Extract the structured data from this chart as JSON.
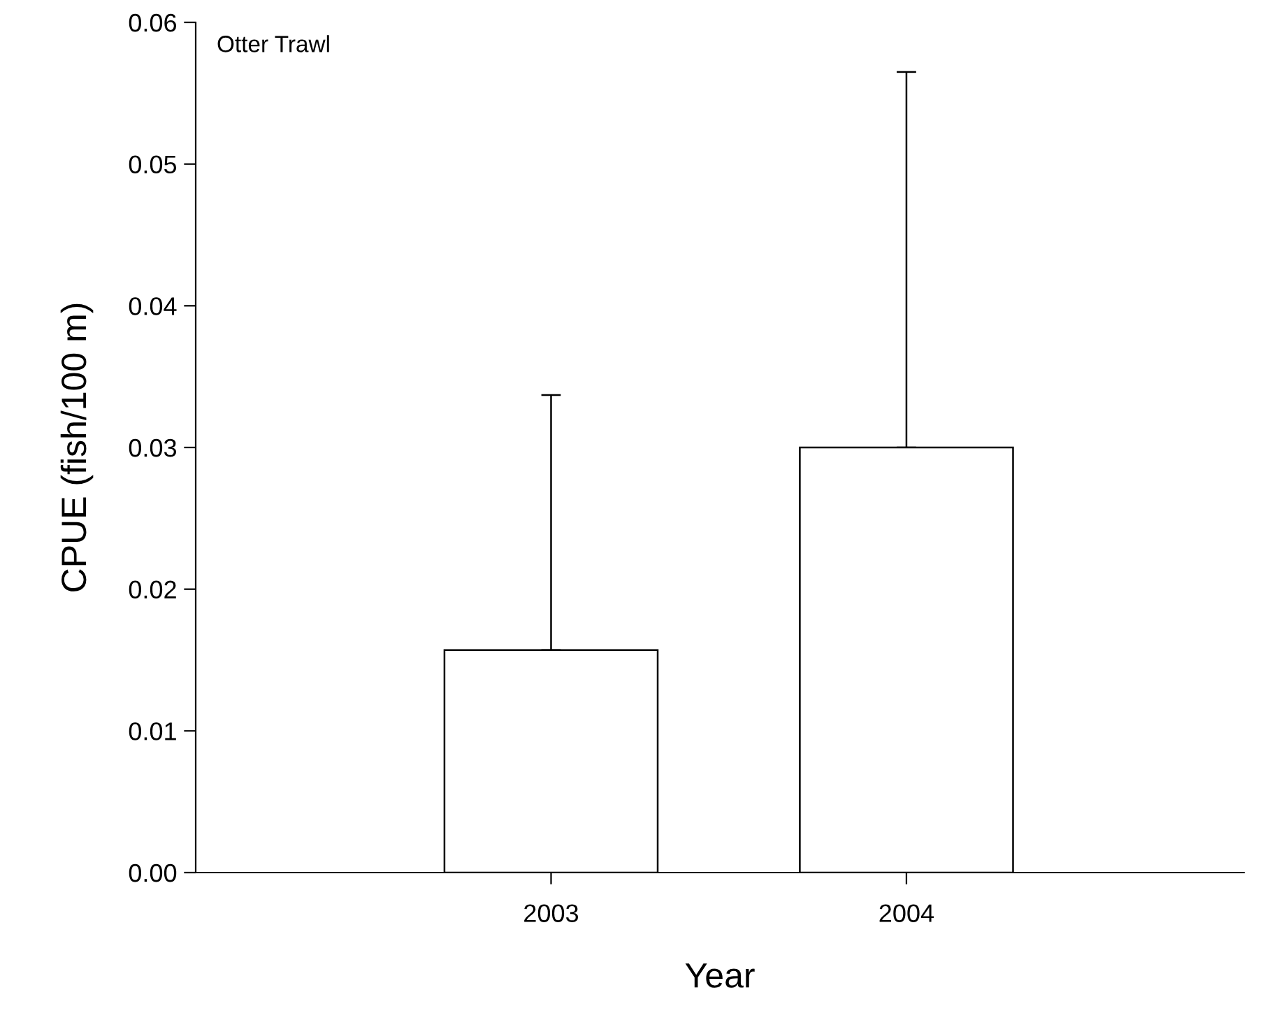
{
  "chart_data": {
    "type": "bar",
    "xlabel": "Year",
    "ylabel": "CPUE (fish/100 m)",
    "annotations": [
      "Otter Trawl"
    ],
    "categories": [
      "2003",
      "2004"
    ],
    "values": [
      0.0157,
      0.03
    ],
    "errors": [
      [
        0.0157,
        0.0337
      ],
      [
        0.03,
        0.0565
      ]
    ],
    "color": "#ffffff",
    "ylim": [
      0,
      0.06
    ],
    "yticks": [
      {
        "value": 0,
        "label": "0.00"
      },
      {
        "value": 0.01,
        "label": "0.01"
      },
      {
        "value": 0.02,
        "label": "0.02"
      },
      {
        "value": 0.03,
        "label": "0.03"
      },
      {
        "value": 0.04,
        "label": "0.04"
      },
      {
        "value": 0.05,
        "label": "0.05"
      },
      {
        "value": 0.06,
        "label": "0.06"
      }
    ],
    "grid": false,
    "legend": false
  }
}
